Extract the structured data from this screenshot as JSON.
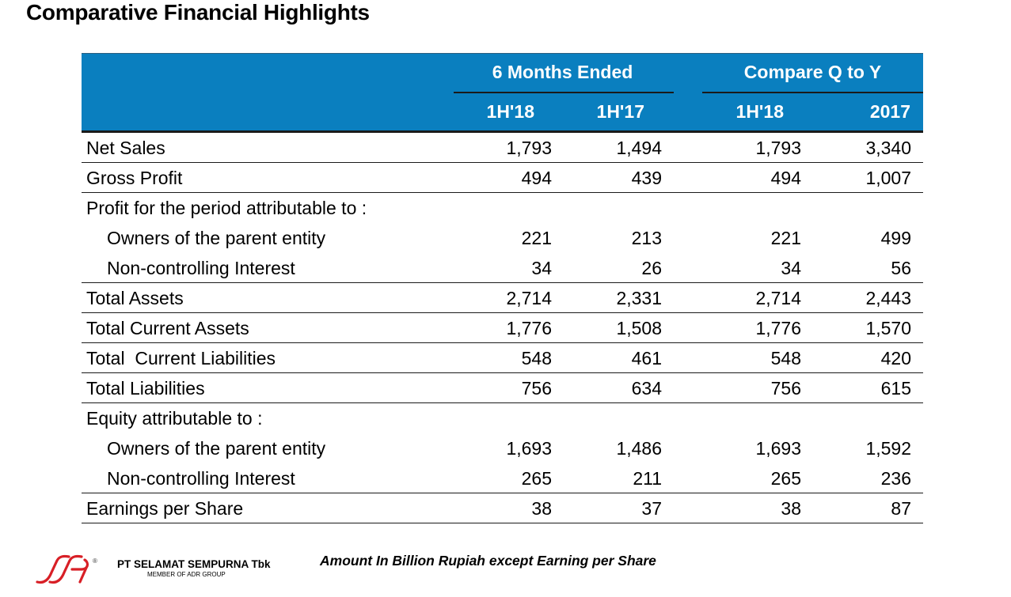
{
  "title": "Comparative Financial Highlights",
  "header": {
    "group1": "6 Months Ended",
    "group2": "Compare Q to Y",
    "columns": [
      "1H'18",
      "1H'17",
      "1H'18",
      "2017"
    ]
  },
  "rows": [
    {
      "label": "Net Sales",
      "values": [
        "1,793",
        "1,494",
        "1,793",
        "3,340"
      ]
    },
    {
      "label": "Gross Profit",
      "values": [
        "494",
        "439",
        "494",
        "1,007"
      ]
    },
    {
      "label": "Profit for the period attributable to :",
      "values": [
        "",
        "",
        "",
        ""
      ]
    },
    {
      "label": "Owners of the parent entity",
      "values": [
        "221",
        "213",
        "221",
        "499"
      ]
    },
    {
      "label": "Non-controlling Interest",
      "values": [
        "34",
        "26",
        "34",
        "56"
      ]
    },
    {
      "label": "Total Assets",
      "values": [
        "2,714",
        "2,331",
        "2,714",
        "2,443"
      ]
    },
    {
      "label": "Total Current Assets",
      "values": [
        "1,776",
        "1,508",
        "1,776",
        "1,570"
      ]
    },
    {
      "label": "Total  Current Liabilities",
      "values": [
        "548",
        "461",
        "548",
        "420"
      ]
    },
    {
      "label": "Total Liabilities",
      "values": [
        "756",
        "634",
        "756",
        "615"
      ]
    },
    {
      "label": "Equity attributable to :",
      "values": [
        "",
        "",
        "",
        ""
      ]
    },
    {
      "label": "Owners of the parent entity",
      "values": [
        "1,693",
        "1,486",
        "1,693",
        "1,592"
      ]
    },
    {
      "label": "Non-controlling Interest",
      "values": [
        "265",
        "211",
        "265",
        "236"
      ]
    },
    {
      "label": "Earnings per Share",
      "values": [
        "38",
        "37",
        "38",
        "87"
      ]
    }
  ],
  "footer": {
    "company": "PT SELAMAT SEMPURNA Tbk",
    "member": "MEMBER OF ADR GROUP",
    "registered": "®",
    "note": "Amount In Billion Rupiah except Earning per Share"
  },
  "colors": {
    "header_bg": "#0a7fbf",
    "logo_red": "#d81f26"
  }
}
